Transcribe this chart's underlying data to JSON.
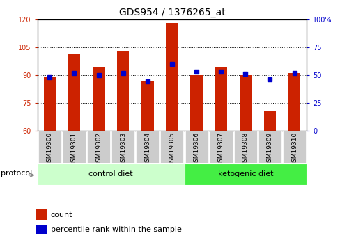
{
  "title": "GDS954 / 1376265_at",
  "samples": [
    "GSM19300",
    "GSM19301",
    "GSM19302",
    "GSM19303",
    "GSM19304",
    "GSM19305",
    "GSM19306",
    "GSM19307",
    "GSM19308",
    "GSM19309",
    "GSM19310"
  ],
  "counts": [
    89,
    101,
    94,
    103,
    87,
    118,
    90,
    94,
    90,
    71,
    91
  ],
  "percentile_ranks": [
    48,
    52,
    50,
    52,
    44,
    60,
    53,
    53,
    51,
    46,
    52
  ],
  "ylim_left": [
    60,
    120
  ],
  "ylim_right": [
    0,
    100
  ],
  "yticks_left": [
    60,
    75,
    90,
    105,
    120
  ],
  "yticks_right": [
    0,
    25,
    50,
    75,
    100
  ],
  "bar_color": "#CC2200",
  "dot_color": "#0000CC",
  "bar_width": 0.5,
  "control_diet_color": "#CCFFCC",
  "ketogenic_diet_color": "#44EE44",
  "tick_bg_color": "#CCCCCC",
  "title_fontsize": 10,
  "tick_fontsize": 7,
  "label_fontsize": 8,
  "n_control": 6,
  "n_ketogenic": 5
}
